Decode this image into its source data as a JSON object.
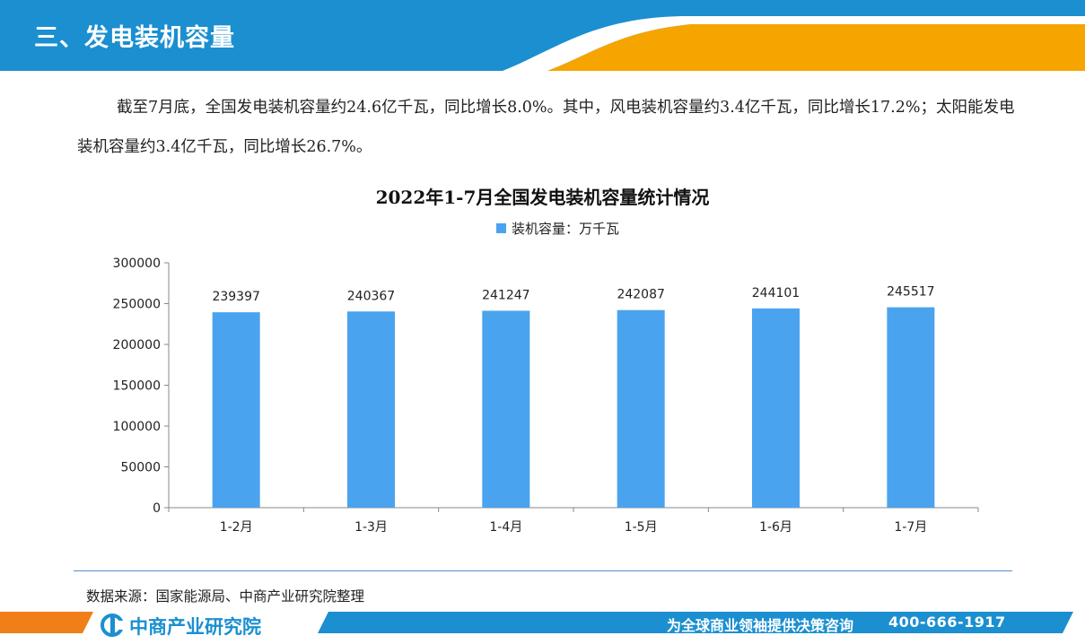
{
  "header": {
    "section_title": "三、发电装机容量"
  },
  "intro": {
    "text": "截至7月底，全国发电装机容量约24.6亿千瓦，同比增长8.0%。其中，风电装机容量约3.4亿千瓦，同比增长17.2%；太阳能发电装机容量约3.4亿千瓦，同比增长26.7%。"
  },
  "chart_data": {
    "type": "bar",
    "title": "2022年1-7月全国发电装机容量统计情况",
    "categories": [
      "1-2月",
      "1-3月",
      "1-4月",
      "1-5月",
      "1-6月",
      "1-7月"
    ],
    "series": [
      {
        "name": "装机容量：万千瓦",
        "values": [
          239397,
          240367,
          241247,
          242087,
          244101,
          245517
        ]
      }
    ],
    "ylim": [
      0,
      300000
    ],
    "yticks": [
      0,
      50000,
      100000,
      150000,
      200000,
      250000,
      300000
    ],
    "legend_position": "top-center",
    "grid": false,
    "bar_color": "#4aa3ee"
  },
  "source": "数据来源：国家能源局、中商产业研究院整理",
  "footer": {
    "logo_text": "中商产业研究院",
    "slogan": "为全球商业领袖提供决策咨询",
    "phone": "400-666-1917"
  },
  "colors": {
    "brand_blue": "#1b8fd0",
    "accent_orange": "#f5a400",
    "bar": "#4aa3ee"
  }
}
